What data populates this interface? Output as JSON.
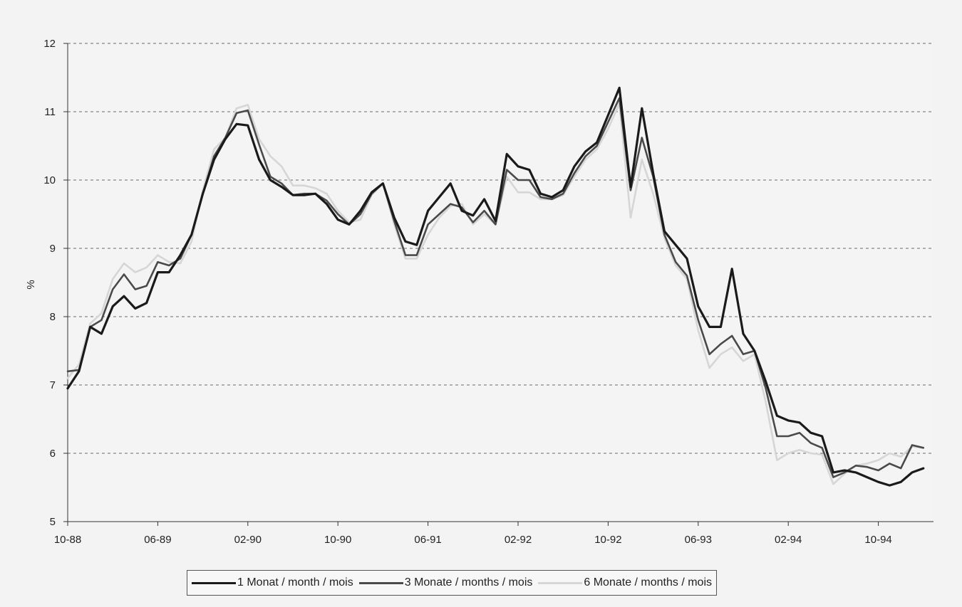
{
  "chart_data": {
    "type": "line",
    "title": "",
    "xlabel": "",
    "ylabel": "%",
    "ylim": [
      5,
      12
    ],
    "yticks": [
      "5",
      "6",
      "7",
      "8",
      "9",
      "10",
      "11",
      "12"
    ],
    "x_start": "10-88",
    "x_tick_labels": [
      "10-88",
      "06-89",
      "02-90",
      "10-90",
      "06-91",
      "02-92",
      "10-92",
      "06-93",
      "02-94",
      "10-94"
    ],
    "grid": "horizontal dashed",
    "legend_position": "bottom",
    "series": [
      {
        "name": "1 Monat / month / mois",
        "color": "#1a1a1a",
        "values": [
          6.95,
          7.2,
          7.85,
          7.75,
          8.15,
          8.3,
          8.12,
          8.2,
          8.65,
          8.65,
          8.9,
          9.2,
          9.8,
          10.3,
          10.6,
          10.82,
          10.8,
          10.3,
          10.0,
          9.9,
          9.78,
          9.78,
          9.8,
          9.65,
          9.42,
          9.35,
          9.55,
          9.82,
          9.95,
          9.45,
          9.1,
          9.05,
          9.55,
          9.75,
          9.95,
          9.55,
          9.48,
          9.72,
          9.4,
          10.38,
          10.2,
          10.15,
          9.8,
          9.75,
          9.85,
          10.2,
          10.42,
          10.55,
          10.95,
          11.35,
          9.9,
          11.05,
          10.1,
          9.25,
          9.05,
          8.85,
          8.15,
          7.85,
          7.85,
          8.7,
          7.75,
          7.5,
          7.05,
          6.55,
          6.48,
          6.45,
          6.3,
          6.25,
          5.72,
          5.75,
          5.72,
          5.65,
          5.58,
          5.53,
          5.58,
          5.72,
          5.78
        ]
      },
      {
        "name": "3 Monate / months / mois",
        "color": "#4a4a4a",
        "values": [
          7.2,
          7.22,
          7.85,
          7.95,
          8.4,
          8.62,
          8.4,
          8.45,
          8.8,
          8.75,
          8.85,
          9.2,
          9.8,
          10.35,
          10.62,
          10.98,
          11.02,
          10.52,
          10.05,
          9.95,
          9.78,
          9.8,
          9.8,
          9.7,
          9.5,
          9.35,
          9.5,
          9.8,
          9.95,
          9.4,
          8.9,
          8.9,
          9.35,
          9.5,
          9.65,
          9.6,
          9.38,
          9.55,
          9.35,
          10.15,
          10.0,
          10.0,
          9.75,
          9.72,
          9.8,
          10.1,
          10.35,
          10.5,
          10.85,
          11.2,
          9.85,
          10.62,
          10.05,
          9.2,
          8.8,
          8.6,
          7.95,
          7.45,
          7.6,
          7.72,
          7.45,
          7.5,
          6.95,
          6.25,
          6.25,
          6.3,
          6.15,
          6.08,
          5.65,
          5.72,
          5.82,
          5.8,
          5.75,
          5.85,
          5.78,
          6.12,
          6.08
        ]
      },
      {
        "name": "6 Monate / months / mois",
        "color": "#d6d6d6",
        "values": [
          7.1,
          7.3,
          7.9,
          8.05,
          8.55,
          8.78,
          8.65,
          8.72,
          8.9,
          8.8,
          8.78,
          9.1,
          9.85,
          10.45,
          10.62,
          11.05,
          11.1,
          10.6,
          10.35,
          10.2,
          9.92,
          9.92,
          9.88,
          9.8,
          9.55,
          9.38,
          9.42,
          9.78,
          9.95,
          9.35,
          8.85,
          8.85,
          9.2,
          9.45,
          9.62,
          9.65,
          9.35,
          9.5,
          9.35,
          10.05,
          9.82,
          9.82,
          9.72,
          9.72,
          9.78,
          10.05,
          10.3,
          10.45,
          10.75,
          11.12,
          9.45,
          10.3,
          9.8,
          9.15,
          8.75,
          8.55,
          7.8,
          7.25,
          7.45,
          7.55,
          7.35,
          7.45,
          6.75,
          5.9,
          6.0,
          6.05,
          6.0,
          5.98,
          5.55,
          5.7,
          5.82,
          5.85,
          5.9,
          6.0,
          5.95,
          6.1,
          6.08
        ]
      }
    ]
  }
}
